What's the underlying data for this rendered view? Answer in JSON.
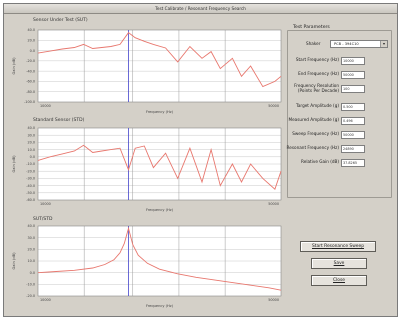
{
  "window": {
    "title": "Test Calibrate / Resonant Frequency Search"
  },
  "plots": [
    {
      "title": "Sensor Under Test (SUT)",
      "x_label": "Frequency (Hz)",
      "y_label": "Gain (dB)",
      "x_start": "10000",
      "x_end": "50000",
      "y_ticks": [
        "40.0",
        "20.0",
        "0.0",
        "-20.0",
        "-40.0",
        "-60.0",
        "-80.0",
        "-100.0"
      ]
    },
    {
      "title": "Standard Sensor (STD)",
      "x_label": "Frequency (Hz)",
      "y_label": "Gain (dB)",
      "x_start": "10000",
      "x_end": "50000",
      "y_ticks": [
        "40.0",
        "30.0",
        "20.0",
        "10.0",
        "0.0",
        "-10.0",
        "-20.0",
        "-30.0",
        "-40.0",
        "-50.0",
        "-60.0"
      ]
    },
    {
      "title": "SUT/STD",
      "x_label": "Frequency (Hz)",
      "y_label": "Gain (dB)",
      "x_start": "10000",
      "x_end": "50000",
      "y_ticks": [
        "40.0",
        "30.0",
        "20.0",
        "10.0",
        "0.0",
        "-10.0",
        "-20.0"
      ]
    }
  ],
  "test_params": {
    "group_label": "Test Parameters",
    "shaker_label": "Shaker",
    "shaker_value": "PCB - 394C10",
    "fields": [
      {
        "label": "Start Frequency (Hz)",
        "value": "10000"
      },
      {
        "label": "End Frequency (Hz)",
        "value": "50000"
      },
      {
        "label": "Frequency Resolution\n(Points Per Decade)",
        "value": "100"
      },
      {
        "label": "Target Amplitude (g)",
        "value": "0.500"
      },
      {
        "label": "Measured Amplitude (g)",
        "value": "0.496"
      },
      {
        "label": "Sweep Frequency (Hz)",
        "value": "50000"
      },
      {
        "label": "Resonant Frequency (Hz)",
        "value": "24890"
      },
      {
        "label": "Relative Gain (dB)",
        "value": "37.8265"
      }
    ]
  },
  "buttons": {
    "start": "Start Resonance Sweep",
    "save": "Save",
    "close": "Close"
  },
  "colors": {
    "trace": "#e8776e",
    "cursor": "#4444cc",
    "grid": "#c8c8c8"
  },
  "chart_data": [
    {
      "type": "line",
      "title": "Sensor Under Test (SUT)",
      "xlabel": "Frequency (Hz)",
      "ylabel": "Gain (dB)",
      "xlim": [
        10000,
        50000
      ],
      "ylim": [
        -100,
        40
      ],
      "cursor_x": 24890,
      "series": [
        {
          "x": [
            10000,
            12000,
            14000,
            16000,
            17500,
            19000,
            20500,
            22000,
            23500,
            24890,
            26000,
            27500,
            29000,
            31000,
            33000,
            35000,
            37000,
            38500,
            40000,
            42000,
            43500,
            45000,
            47000,
            49000,
            50000
          ],
          "values": [
            -5,
            -1,
            3,
            6,
            12,
            4,
            6,
            8,
            12,
            35,
            25,
            18,
            12,
            5,
            -22,
            8,
            -15,
            -2,
            -35,
            -15,
            -50,
            -30,
            -70,
            -60,
            -50
          ]
        }
      ]
    },
    {
      "type": "line",
      "title": "Standard Sensor (STD)",
      "xlabel": "Frequency (Hz)",
      "ylabel": "Gain (dB)",
      "xlim": [
        10000,
        50000
      ],
      "ylim": [
        -60,
        40
      ],
      "cursor_x": 24890,
      "series": [
        {
          "x": [
            10000,
            12000,
            14000,
            16000,
            17500,
            19000,
            20500,
            22000,
            23500,
            24890,
            26000,
            27500,
            29000,
            31000,
            33000,
            35000,
            37000,
            38500,
            40000,
            42000,
            43500,
            45000,
            47000,
            49000,
            50000
          ],
          "values": [
            -5,
            0,
            4,
            8,
            16,
            6,
            8,
            10,
            12,
            -18,
            12,
            15,
            -15,
            5,
            -30,
            12,
            -35,
            10,
            -40,
            -10,
            -35,
            -10,
            -30,
            -45,
            -20
          ]
        }
      ]
    },
    {
      "type": "line",
      "title": "SUT/STD",
      "xlabel": "Frequency (Hz)",
      "ylabel": "Gain (dB)",
      "xlim": [
        10000,
        50000
      ],
      "ylim": [
        -20,
        40
      ],
      "cursor_x": 24890,
      "series": [
        {
          "x": [
            10000,
            13000,
            16000,
            19000,
            21000,
            22500,
            23500,
            24200,
            24890,
            25600,
            26500,
            28000,
            30000,
            33000,
            36000,
            40000,
            44000,
            48000,
            50000
          ],
          "values": [
            0,
            1,
            2,
            4,
            7,
            11,
            17,
            25,
            38,
            24,
            15,
            8,
            3,
            -1,
            -4,
            -7,
            -10,
            -13,
            -15
          ]
        }
      ]
    }
  ]
}
